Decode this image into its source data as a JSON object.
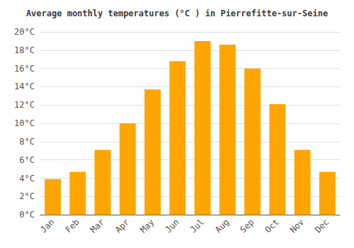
{
  "chart_data": {
    "type": "bar",
    "title": "Average monthly temperatures (°C ) in Pierrefitte-sur-Seine",
    "categories": [
      "Jan",
      "Feb",
      "Mar",
      "Apr",
      "May",
      "Jun",
      "Jul",
      "Aug",
      "Sep",
      "Oct",
      "Nov",
      "Dec"
    ],
    "values": [
      3.9,
      4.7,
      7.1,
      10.0,
      13.7,
      16.8,
      19.0,
      18.6,
      16.0,
      12.1,
      7.1,
      4.7
    ],
    "color": "#FFA500",
    "ylim": [
      0,
      20
    ],
    "yticks": [
      {
        "value": 0,
        "label": "0°C"
      },
      {
        "value": 2,
        "label": "2°C"
      },
      {
        "value": 4,
        "label": "4°C"
      },
      {
        "value": 6,
        "label": "6°C"
      },
      {
        "value": 8,
        "label": "8°C"
      },
      {
        "value": 10,
        "label": "10°C"
      },
      {
        "value": 12,
        "label": "12°C"
      },
      {
        "value": 14,
        "label": "14°C"
      },
      {
        "value": 16,
        "label": "16°C"
      },
      {
        "value": 18,
        "label": "18°C"
      },
      {
        "value": 20,
        "label": "20°C"
      }
    ],
    "grid": true
  }
}
